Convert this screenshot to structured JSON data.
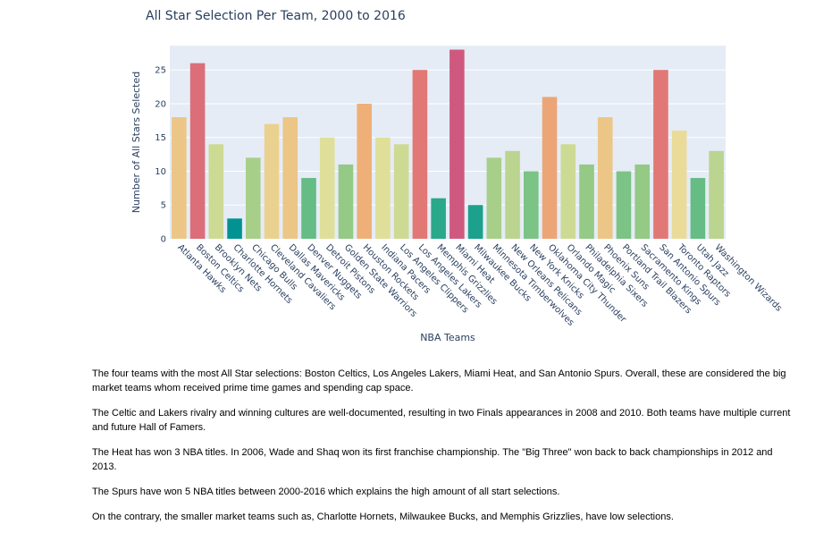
{
  "chart_data": {
    "type": "bar",
    "title": "All Star Selection Per Team, 2000 to 2016",
    "xlabel": "NBA Teams",
    "ylabel": "Number of All Stars Selected",
    "ylim": [
      0,
      28.6
    ],
    "yticks": [
      0,
      5,
      10,
      15,
      20,
      25
    ],
    "grid": true,
    "legend": "none",
    "categories": [
      "Atlanta Hawks",
      "Boston Celtics",
      "Brooklyn Nets",
      "Charlotte Hornets",
      "Chicago Bulls",
      "Cleveland Cavaliers",
      "Dallas Mavericks",
      "Denver Nuggets",
      "Detroit Pistons",
      "Golden State Warriors",
      "Houston Rockets",
      "Indiana Pacers",
      "Los Angeles Clippers",
      "Los Angeles Lakers",
      "Memphis Grizzlies",
      "Miami Heat",
      "Milwaukee Bucks",
      "Minnesota Timberwolves",
      "New Orleans Pelicans",
      "New York Knicks",
      "Oklahoma City Thunder",
      "Orlando Magic",
      "Philadelphia Sixers",
      "Phoenix Suns",
      "Portland Trail Blazers",
      "Sacramento Kings",
      "San Antonio Spurs",
      "Toronto Raptors",
      "Utah Jazz",
      "Washington Wizards"
    ],
    "values": [
      18,
      26,
      14,
      3,
      12,
      17,
      18,
      9,
      15,
      11,
      20,
      15,
      14,
      25,
      6,
      28,
      5,
      12,
      13,
      10,
      21,
      14,
      11,
      18,
      10,
      11,
      25,
      16,
      9,
      13
    ],
    "colors": {
      "plot_bg": "#e5ecf6",
      "grid": "#ffffff",
      "text": "#2a3f5f",
      "colorscale": [
        "#009392",
        "#39b185",
        "#9ccb86",
        "#e9e29c",
        "#eeb479",
        "#e88471",
        "#cf597e"
      ]
    }
  },
  "notes": [
    "The four teams with the most All Star selections: Boston Celtics, Los Angeles Lakers, Miami Heat, and San Antonio Spurs. Overall, these are considered the big market teams whom received prime time games and spending cap space.",
    "The Celtic and Lakers rivalry and winning cultures are well-documented, resulting in two Finals appearances in 2008 and 2010. Both teams have multiple current and future Hall of Famers.",
    "The Heat has won 3 NBA titles. In 2006, Wade and Shaq won its first franchise championship. The \"Big Three\" won back to back championships in 2012 and 2013.",
    "The Spurs have won 5 NBA titles between 2000-2016 which explains the high amount of all start selections.",
    "On the contrary, the smaller market teams such as, Charlotte Hornets, Milwaukee Bucks, and Memphis Grizzlies, have low selections."
  ]
}
